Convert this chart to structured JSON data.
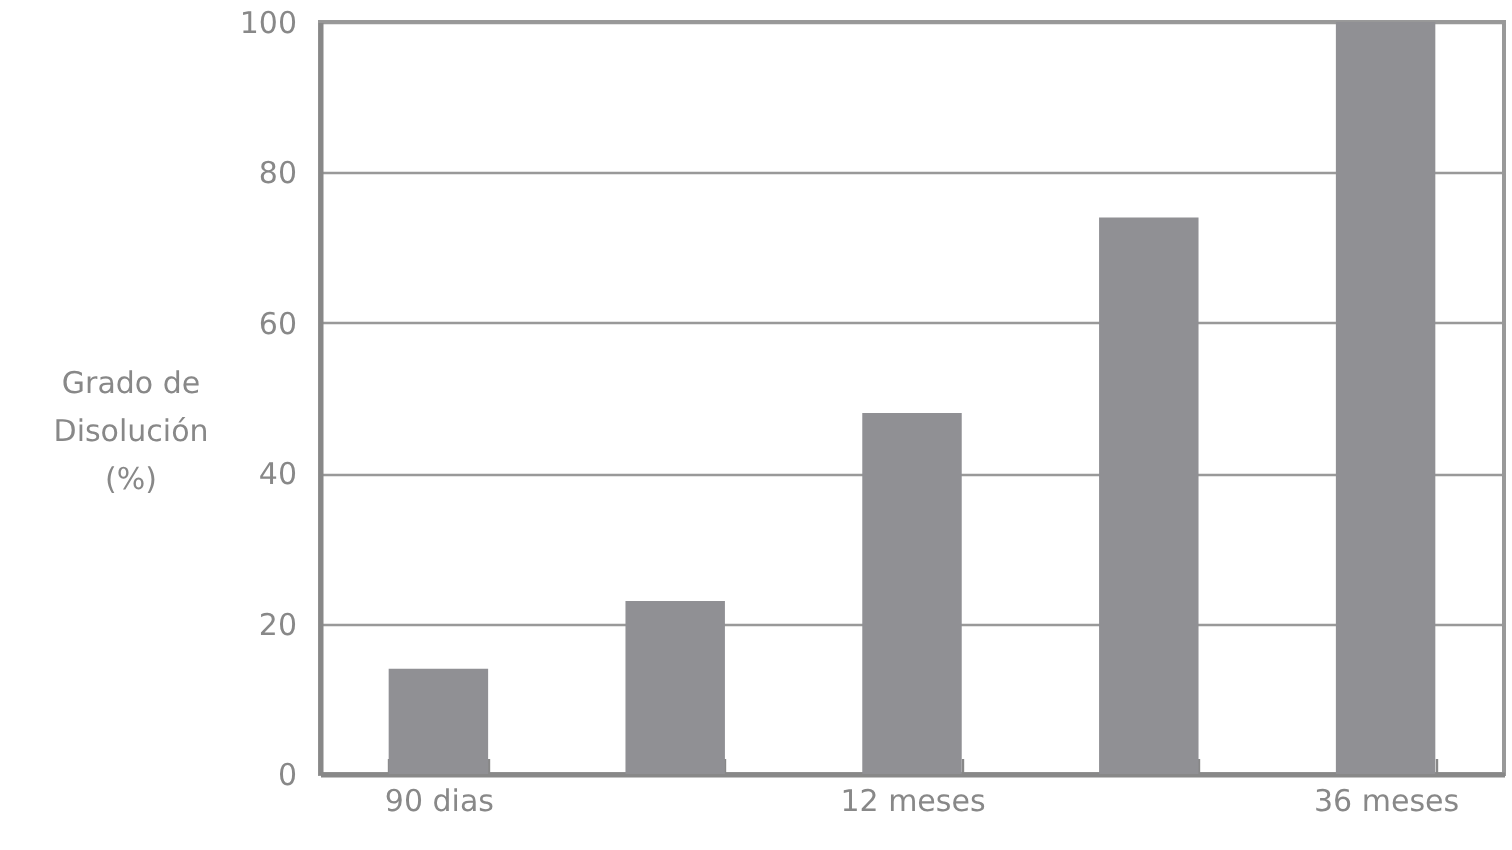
{
  "chart_data": {
    "type": "bar",
    "ylabel": "Grado de Disolución (%)",
    "categories": [
      "90 dias",
      null,
      "12 meses",
      null,
      "36 meses"
    ],
    "values": [
      14,
      23,
      48,
      74,
      100
    ],
    "color": "#909094",
    "ylim": [
      0,
      100
    ],
    "yticks": [
      0,
      20,
      40,
      60,
      80,
      100
    ],
    "grid": "y"
  }
}
